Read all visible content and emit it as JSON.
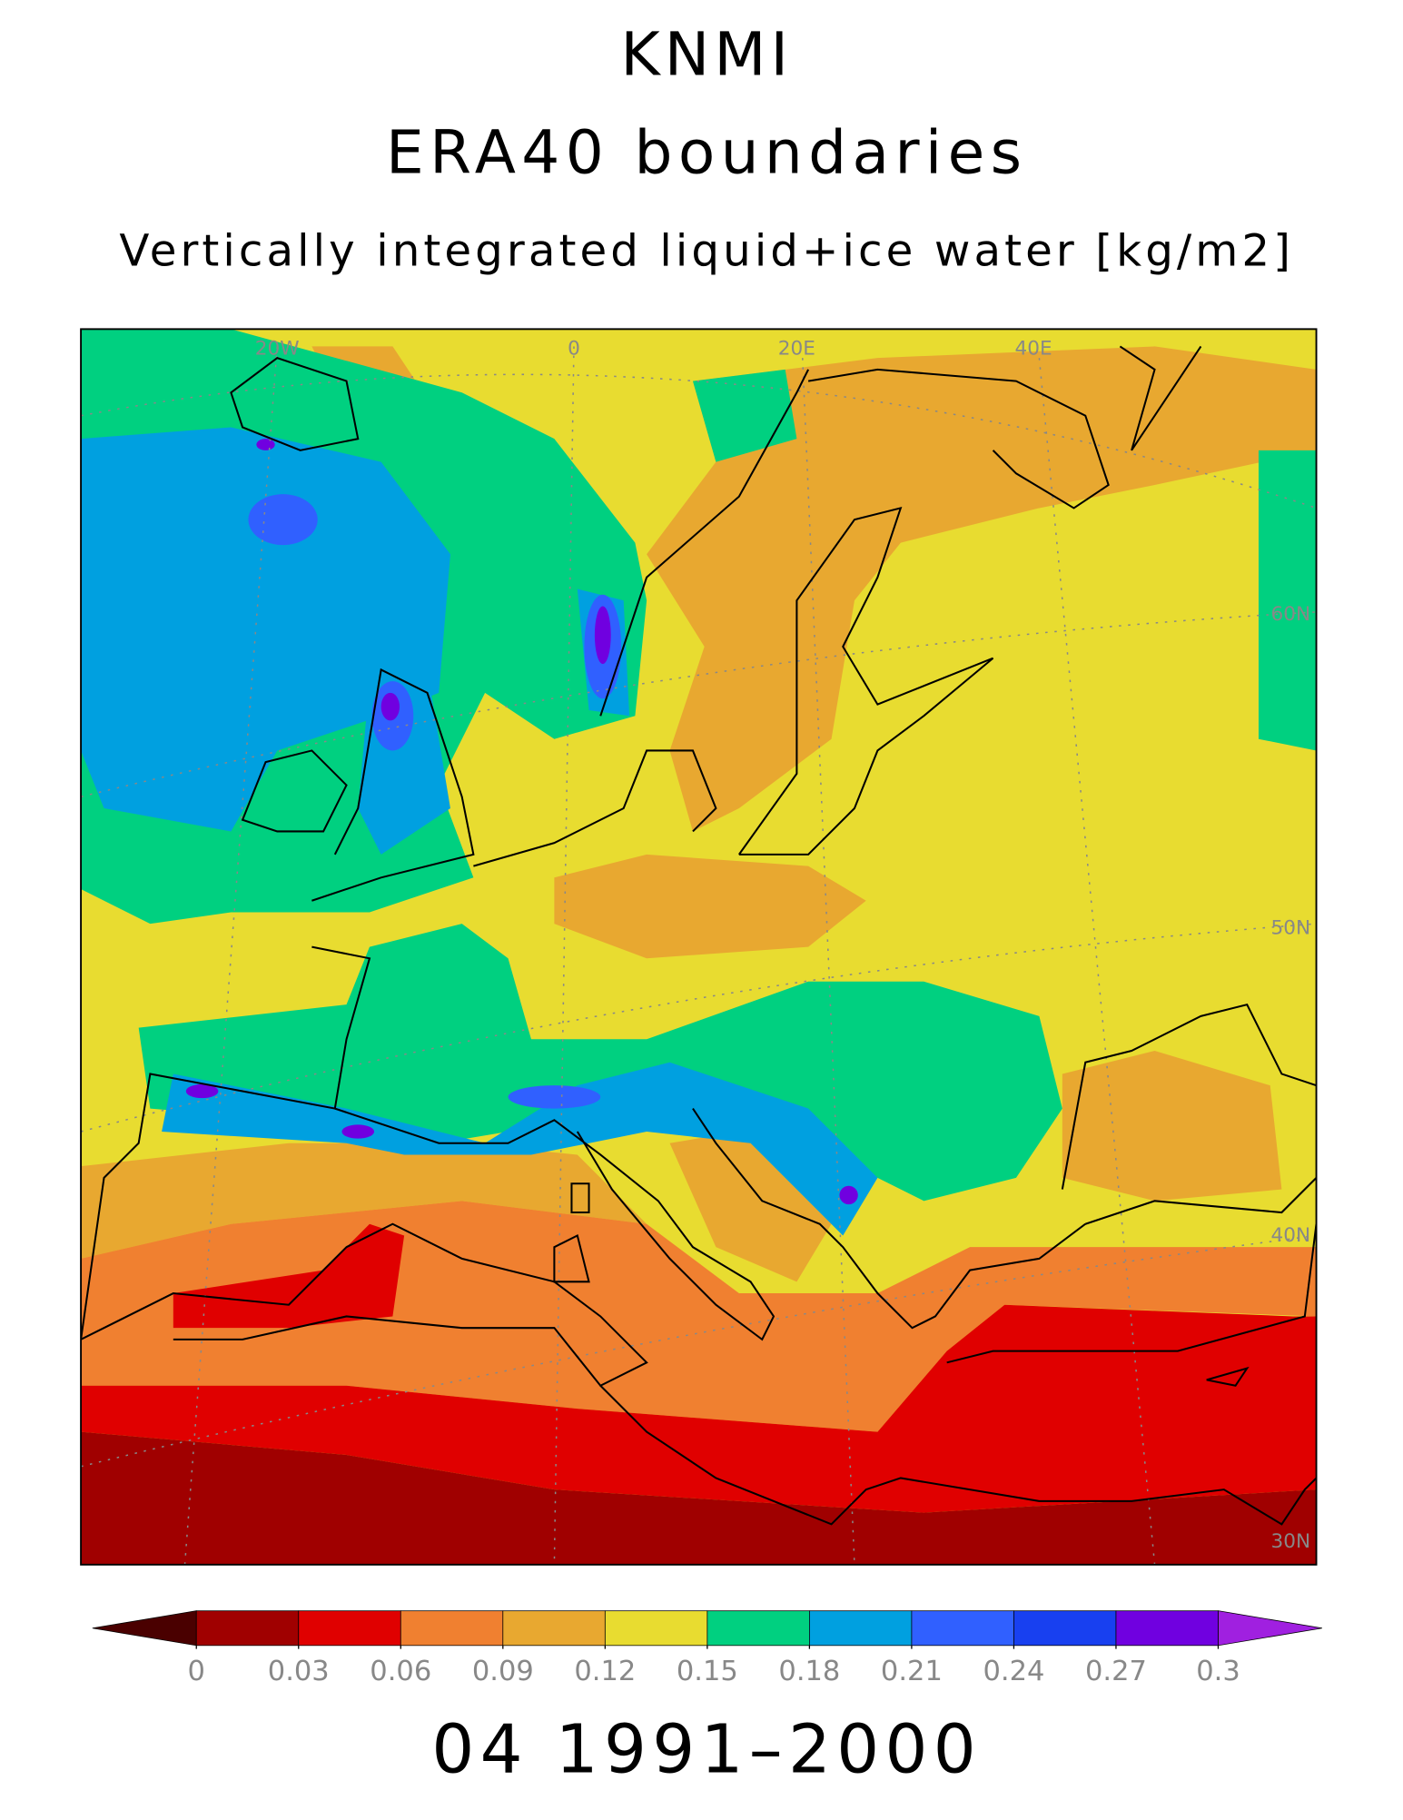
{
  "header": {
    "title": "KNMI",
    "subtitle": "ERA40 boundaries",
    "variable": "Vertically integrated liquid+ice water [kg/m2]"
  },
  "map": {
    "lon_labels": [
      "20W",
      "0",
      "20E",
      "40E"
    ],
    "lat_labels": [
      "60N",
      "50N",
      "40N",
      "30N"
    ]
  },
  "colorbar": {
    "ticks": [
      0,
      0.03,
      0.06,
      0.09,
      0.12,
      0.15,
      0.18,
      0.21,
      0.24,
      0.27,
      0.3
    ],
    "colors": [
      "#a00000",
      "#e00000",
      "#f08030",
      "#e8a830",
      "#e8dc30",
      "#00d080",
      "#00a0e0",
      "#3060ff",
      "#1840f0",
      "#7000e0"
    ],
    "under_color": "#4a0000",
    "over_color": "#a020e0"
  },
  "footer": "04 1991–2000"
}
